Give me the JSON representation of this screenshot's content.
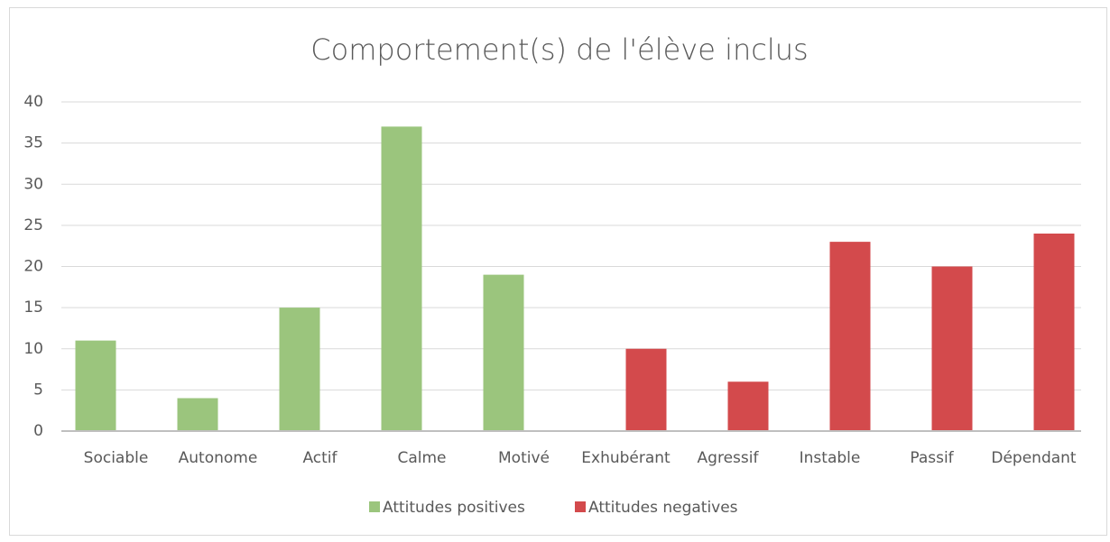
{
  "chart_data": {
    "type": "bar",
    "title": "Comportement(s) de l'élève inclus",
    "categories": [
      "Sociable",
      "Autonome",
      "Actif",
      "Calme",
      "Motivé",
      "Exhubérant",
      "Agressif",
      "Instable",
      "Passif",
      "Dépendant"
    ],
    "series": [
      {
        "name": "Attitudes positives",
        "color": "#9bc57d",
        "values": [
          11,
          4,
          15,
          37,
          19,
          null,
          null,
          null,
          null,
          null
        ]
      },
      {
        "name": "Attitudes negatives",
        "color": "#d34a4c",
        "values": [
          null,
          null,
          null,
          null,
          null,
          10,
          6,
          23,
          20,
          24
        ]
      }
    ],
    "ylim": [
      0,
      40
    ],
    "yticks": [
      0,
      5,
      10,
      15,
      20,
      25,
      30,
      35,
      40
    ],
    "grid": true,
    "legend": "bottom"
  }
}
